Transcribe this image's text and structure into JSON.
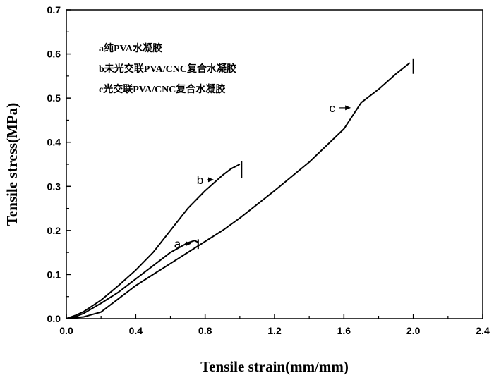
{
  "chart_data": {
    "type": "line",
    "xlabel": "Tensile strain(mm/mm)",
    "ylabel": "Tensile stress(MPa)",
    "xlim": [
      0.0,
      2.4
    ],
    "ylim": [
      0.0,
      0.7
    ],
    "xticks": [
      "0.0",
      "0.4",
      "0.8",
      "1.2",
      "1.6",
      "2.0",
      "2.4"
    ],
    "yticks": [
      "0.0",
      "0.1",
      "0.2",
      "0.3",
      "0.4",
      "0.5",
      "0.6",
      "0.7"
    ],
    "grid": false,
    "legend_placement": "top-left",
    "legend": [
      {
        "key": "a",
        "text": "纯PVA水凝胶"
      },
      {
        "key": "b",
        "text": "未光交联PVA/CNC复合水凝胶"
      },
      {
        "key": "c",
        "text": "光交联PVA/CNC复合水凝胶"
      }
    ],
    "series": [
      {
        "name": "a",
        "x": [
          0.0,
          0.05,
          0.1,
          0.2,
          0.3,
          0.4,
          0.5,
          0.6,
          0.7,
          0.74,
          0.76
        ],
        "y": [
          0.0,
          0.004,
          0.012,
          0.035,
          0.06,
          0.09,
          0.12,
          0.15,
          0.172,
          0.177,
          0.173
        ],
        "failure_x": 0.76,
        "failure_range": [
          0.158,
          0.18
        ],
        "label_at": {
          "x": 0.72,
          "y": 0.17
        },
        "label_text_x": 0.66
      },
      {
        "name": "b",
        "x": [
          0.0,
          0.05,
          0.1,
          0.2,
          0.3,
          0.4,
          0.5,
          0.6,
          0.7,
          0.8,
          0.9,
          0.95,
          1.0
        ],
        "y": [
          0.0,
          0.007,
          0.016,
          0.042,
          0.075,
          0.11,
          0.15,
          0.2,
          0.25,
          0.29,
          0.325,
          0.34,
          0.35
        ],
        "failure_x": 1.01,
        "failure_range": [
          0.318,
          0.357
        ],
        "label_at": {
          "x": 0.85,
          "y": 0.315
        },
        "label_text_x": 0.79
      },
      {
        "name": "c",
        "x": [
          0.0,
          0.1,
          0.2,
          0.3,
          0.4,
          0.5,
          0.6,
          0.7,
          0.8,
          0.9,
          1.0,
          1.2,
          1.4,
          1.6,
          1.7,
          1.8,
          1.9,
          1.98
        ],
        "y": [
          0.0,
          0.004,
          0.015,
          0.045,
          0.075,
          0.1,
          0.125,
          0.15,
          0.175,
          0.2,
          0.228,
          0.29,
          0.355,
          0.43,
          0.49,
          0.52,
          0.555,
          0.58
        ],
        "failure_x": 2.0,
        "failure_range": [
          0.555,
          0.59
        ],
        "label_at": {
          "x": 1.64,
          "y": 0.478
        },
        "label_text_x": 1.55
      }
    ]
  }
}
